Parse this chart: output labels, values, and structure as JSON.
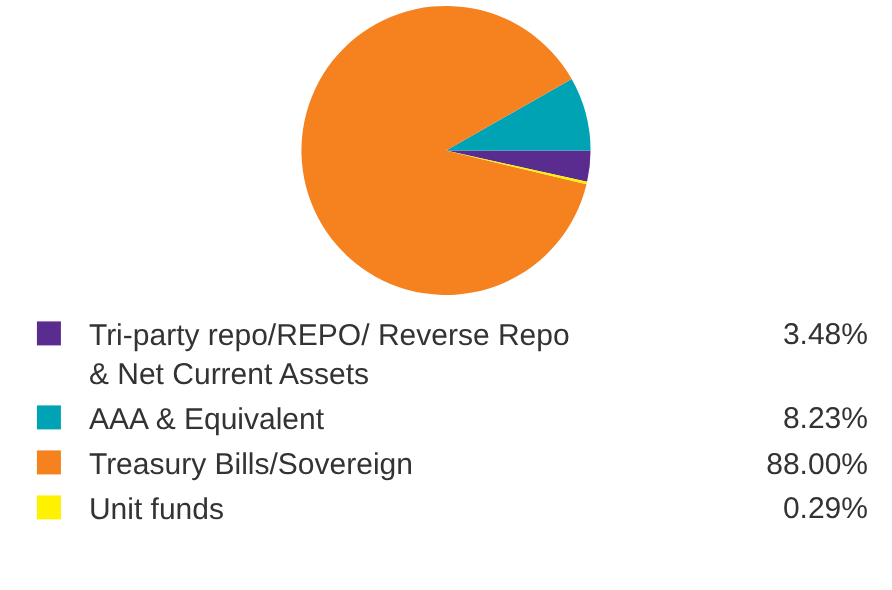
{
  "chart_data": {
    "type": "pie",
    "categories": [
      "Tri-party repo/REPO/ Reverse Repo & Net Current Assets",
      "AAA & Equivalent",
      "Treasury Bills/Sovereign",
      "Unit funds"
    ],
    "values": [
      3.48,
      8.23,
      88.0,
      0.29
    ],
    "colors": [
      "#5b2c8f",
      "#00a3b4",
      "#f5821f",
      "#fff200"
    ],
    "value_labels": [
      "3.48%",
      "8.23%",
      "88.00%",
      "0.29%"
    ],
    "legend": "bottom"
  }
}
